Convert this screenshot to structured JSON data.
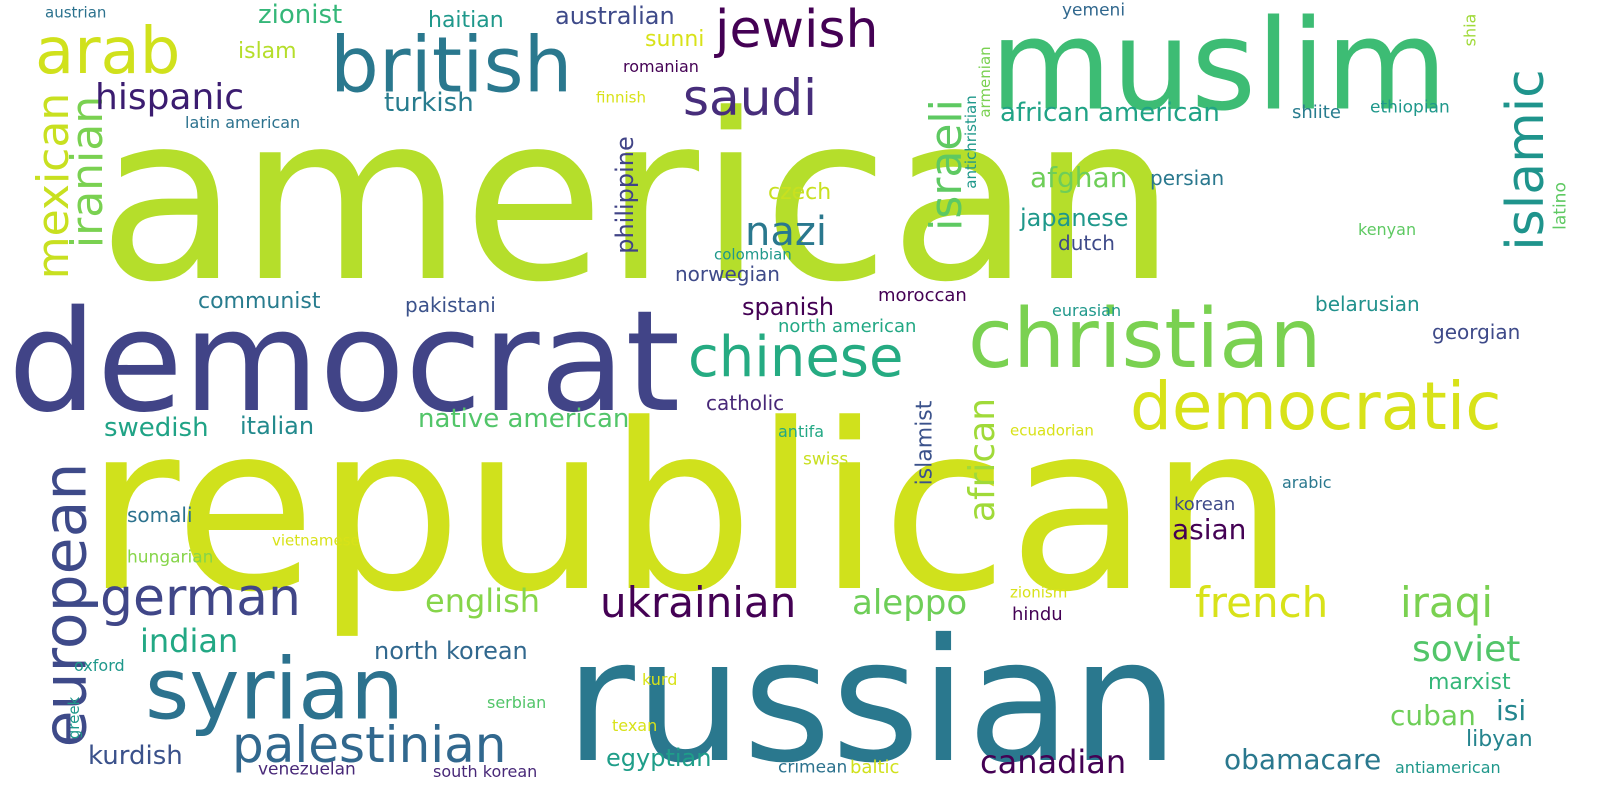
{
  "word_cloud": {
    "words": [
      {
        "text": "american",
        "color": "#b5de2b"
      },
      {
        "text": "republican",
        "color": "#d0e11c"
      },
      {
        "text": "russian",
        "color": "#2a788e"
      },
      {
        "text": "democrat",
        "color": "#414487"
      },
      {
        "text": "muslim",
        "color": "#3dbc74"
      },
      {
        "text": "christian",
        "color": "#7ad151"
      },
      {
        "text": "british",
        "color": "#2a788e"
      },
      {
        "text": "syrian",
        "color": "#2c728e"
      },
      {
        "text": "democratic",
        "color": "#d8e219"
      },
      {
        "text": "european",
        "color": "#3e4a89"
      },
      {
        "text": "arab",
        "color": "#d0e11c"
      },
      {
        "text": "jewish",
        "color": "#440154"
      },
      {
        "text": "saudi",
        "color": "#472d7b"
      },
      {
        "text": "palestinian",
        "color": "#31688e"
      },
      {
        "text": "german",
        "color": "#404688"
      },
      {
        "text": "chinese",
        "color": "#25ab82"
      },
      {
        "text": "islamic",
        "color": "#1f948c"
      },
      {
        "text": "mexican",
        "color": "#c8e020"
      },
      {
        "text": "iranian",
        "color": "#7ad151"
      },
      {
        "text": "israeli",
        "color": "#5ec962"
      },
      {
        "text": "ukrainian",
        "color": "#440154"
      },
      {
        "text": "nazi",
        "color": "#2a788e"
      },
      {
        "text": "french",
        "color": "#d8e219"
      },
      {
        "text": "iraqi",
        "color": "#7ad151"
      },
      {
        "text": "hispanic",
        "color": "#3b1c70"
      },
      {
        "text": "soviet",
        "color": "#52c569"
      },
      {
        "text": "african",
        "color": "#a0da39"
      },
      {
        "text": "aleppo",
        "color": "#6ece58"
      },
      {
        "text": "canadian",
        "color": "#440154"
      },
      {
        "text": "indian",
        "color": "#22a884"
      },
      {
        "text": "english",
        "color": "#86d549"
      },
      {
        "text": "obamacare",
        "color": "#2a788e"
      },
      {
        "text": "cuban",
        "color": "#6ece58"
      },
      {
        "text": "isi",
        "color": "#24868e"
      },
      {
        "text": "asian",
        "color": "#440154"
      },
      {
        "text": "afghan",
        "color": "#6ece58"
      },
      {
        "text": "african american",
        "color": "#20a386"
      },
      {
        "text": "native american",
        "color": "#52c569"
      },
      {
        "text": "kurdish",
        "color": "#3b528b"
      },
      {
        "text": "zionist",
        "color": "#35b779"
      },
      {
        "text": "turkish",
        "color": "#287c8e"
      },
      {
        "text": "north korean",
        "color": "#31688e"
      },
      {
        "text": "philippine",
        "color": "#414487"
      },
      {
        "text": "japanese",
        "color": "#1f988b"
      },
      {
        "text": "spanish",
        "color": "#440154"
      },
      {
        "text": "swedish",
        "color": "#20a386"
      },
      {
        "text": "italian",
        "color": "#238a8d"
      },
      {
        "text": "australian",
        "color": "#3e4a89"
      },
      {
        "text": "egyptian",
        "color": "#1f9e89"
      },
      {
        "text": "libyan",
        "color": "#25848e"
      },
      {
        "text": "marxist",
        "color": "#35b779"
      },
      {
        "text": "islamist",
        "color": "#3b528b"
      },
      {
        "text": "communist",
        "color": "#287c8e"
      },
      {
        "text": "sunni",
        "color": "#d8e219"
      },
      {
        "text": "islam",
        "color": "#b5de2b"
      },
      {
        "text": "haitian",
        "color": "#1f988b"
      },
      {
        "text": "czech",
        "color": "#c8e020"
      },
      {
        "text": "persian",
        "color": "#2a788e"
      },
      {
        "text": "belarusian",
        "color": "#21918c"
      },
      {
        "text": "georgian",
        "color": "#3e4a89"
      },
      {
        "text": "dutch",
        "color": "#3e4a89"
      },
      {
        "text": "catholic",
        "color": "#482878"
      },
      {
        "text": "somali",
        "color": "#2c728e"
      },
      {
        "text": "pakistani",
        "color": "#3b528b"
      },
      {
        "text": "norwegian",
        "color": "#3e4a89"
      },
      {
        "text": "moroccan",
        "color": "#440154"
      },
      {
        "text": "shiite",
        "color": "#287c8e"
      },
      {
        "text": "north american",
        "color": "#22a884"
      },
      {
        "text": "korean",
        "color": "#3e4a89"
      },
      {
        "text": "hindu",
        "color": "#440154"
      },
      {
        "text": "yemeni",
        "color": "#31688e"
      },
      {
        "text": "ethiopian",
        "color": "#1f988b"
      },
      {
        "text": "venezuelan",
        "color": "#482878"
      },
      {
        "text": "south korean",
        "color": "#482878"
      },
      {
        "text": "crimean",
        "color": "#2c728e"
      },
      {
        "text": "baltic",
        "color": "#d0e11c"
      },
      {
        "text": "antiamerican",
        "color": "#1f988b"
      },
      {
        "text": "romanian",
        "color": "#440154"
      },
      {
        "text": "finnish",
        "color": "#d8e219"
      },
      {
        "text": "latin american",
        "color": "#2c728e"
      },
      {
        "text": "colombian",
        "color": "#1f988b"
      },
      {
        "text": "antifa",
        "color": "#22a884"
      },
      {
        "text": "swiss",
        "color": "#c8e020"
      },
      {
        "text": "hungarian",
        "color": "#86d549"
      },
      {
        "text": "vietnamese",
        "color": "#d8e219"
      },
      {
        "text": "kenyan",
        "color": "#5ec962"
      },
      {
        "text": "eurasian",
        "color": "#1f988b"
      },
      {
        "text": "ecuadorian",
        "color": "#d8e219"
      },
      {
        "text": "arabic",
        "color": "#2a788e"
      },
      {
        "text": "zionism",
        "color": "#d8e219"
      },
      {
        "text": "kurd",
        "color": "#d8e219"
      },
      {
        "text": "texan",
        "color": "#d8e219"
      },
      {
        "text": "serbian",
        "color": "#52c569"
      },
      {
        "text": "oxford",
        "color": "#1f988b"
      },
      {
        "text": "greek",
        "color": "#1f988b"
      },
      {
        "text": "austrian",
        "color": "#2c728e"
      },
      {
        "text": "antichristian",
        "color": "#1f988b"
      },
      {
        "text": "armenian",
        "color": "#7ad151"
      },
      {
        "text": "shia",
        "color": "#a0da39"
      },
      {
        "text": "latino",
        "color": "#5ec962"
      }
    ]
  }
}
